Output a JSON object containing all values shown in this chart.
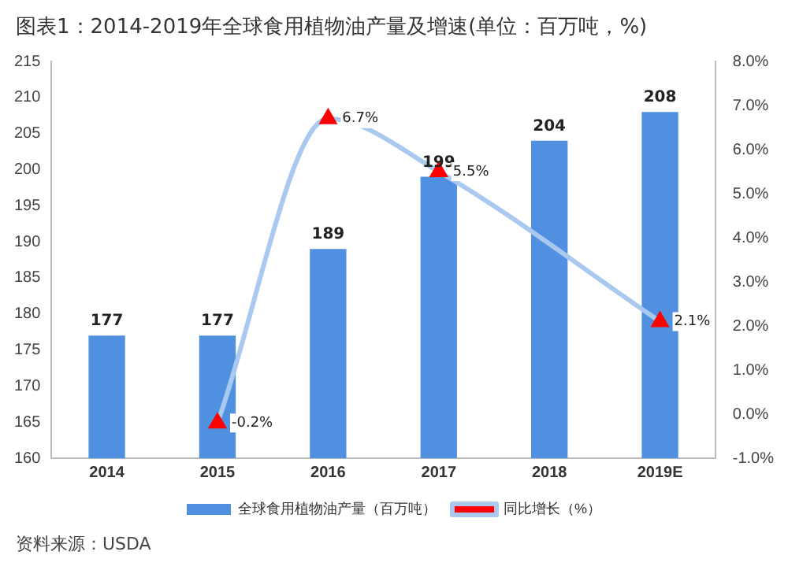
{
  "chart_data": {
    "type": "bar",
    "title": "图表1：2014-2019年全球食用植物油产量及增速(单位：百万吨，%)",
    "categories": [
      "2014",
      "2015",
      "2016",
      "2017",
      "2018",
      "2019E"
    ],
    "series": [
      {
        "name": "全球食用植物油产量（百万吨）",
        "color": "#4f90e0",
        "values": [
          177,
          177,
          189,
          199,
          204,
          208
        ]
      },
      {
        "name": "同比增长（%）",
        "type": "line",
        "axis": "y2",
        "color": "#a9c9f0",
        "marker": "triangle",
        "values": [
          null,
          -0.2,
          6.7,
          5.5,
          null,
          2.1
        ],
        "value_labels": [
          null,
          "-0.2%",
          "6.7%",
          "5.5%",
          null,
          "2.1%"
        ]
      }
    ],
    "data_labels": true,
    "ylim": [
      160,
      215
    ],
    "yticks": [
      160,
      165,
      170,
      175,
      180,
      185,
      190,
      195,
      200,
      205,
      210,
      215
    ],
    "y2lim": [
      -1,
      8
    ],
    "y2ticks": [
      {
        "value": -1,
        "label": "-1.0%"
      },
      {
        "value": 0,
        "label": "0.0%"
      },
      {
        "value": 1,
        "label": "1.0%"
      },
      {
        "value": 2,
        "label": "2.0%"
      },
      {
        "value": 3,
        "label": "3.0%"
      },
      {
        "value": 4,
        "label": "4.0%"
      },
      {
        "value": 5,
        "label": "5.0%"
      },
      {
        "value": 6,
        "label": "6.0%"
      },
      {
        "value": 7,
        "label": "7.0%"
      },
      {
        "value": 8,
        "label": "8.0%"
      }
    ],
    "grid": false,
    "legend": "bottom",
    "annotations": [
      "资料来源：USDA"
    ]
  }
}
